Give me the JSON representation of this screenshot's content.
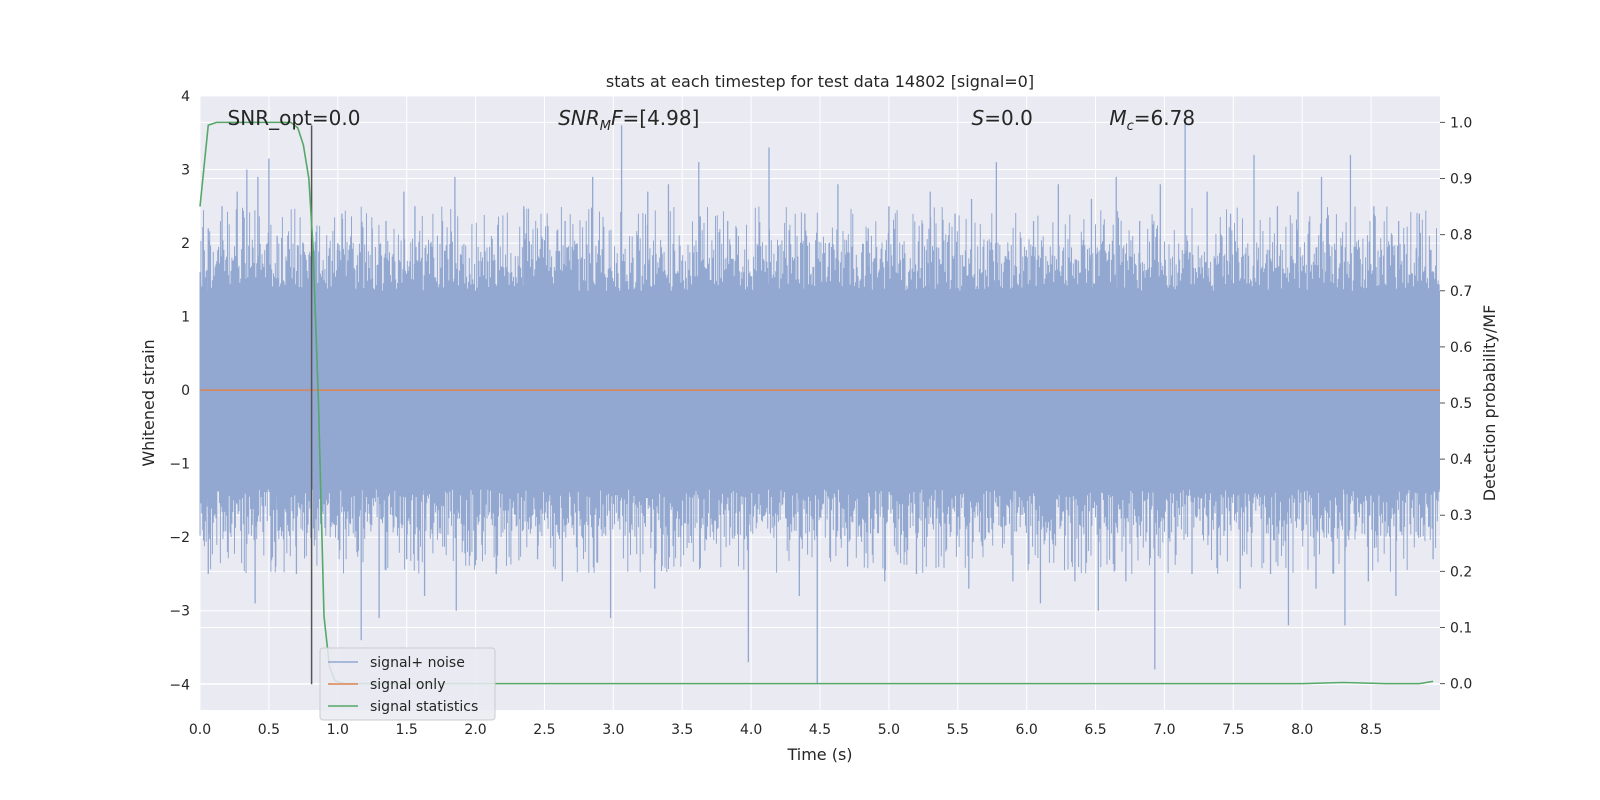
{
  "chart_data": {
    "type": "line",
    "title": "stats at each timestep for test data 14802 [signal=0]",
    "xlabel": "Time (s)",
    "ylabel": "Whitened strain",
    "y2label": "Detection probability/MF",
    "xlim": [
      0.0,
      9.0
    ],
    "ylim": [
      -4.35,
      4.0
    ],
    "y2lim": [
      -0.047,
      1.047
    ],
    "xticks": [
      "0.0",
      "0.5",
      "1.0",
      "1.5",
      "2.0",
      "2.5",
      "3.0",
      "3.5",
      "4.0",
      "4.5",
      "5.0",
      "5.5",
      "6.0",
      "6.5",
      "7.0",
      "7.5",
      "8.0",
      "8.5"
    ],
    "yticks": [
      "4",
      "3",
      "2",
      "1",
      "0",
      "−1",
      "−2",
      "−3",
      "−4"
    ],
    "y2ticks": [
      "1.0",
      "0.9",
      "0.8",
      "0.7",
      "0.6",
      "0.5",
      "0.4",
      "0.3",
      "0.2",
      "0.1",
      "0.0"
    ],
    "grid": true,
    "legend_position": "lower-left",
    "annotations": [
      {
        "id": "snr-opt",
        "text": "SNR_opt=0.0",
        "x": 0.2,
        "y": 3.7,
        "italic_prefix": ""
      },
      {
        "id": "snr-mf",
        "text": "SNR",
        "sub": "M",
        "tail": "F=[4.98]",
        "x": 2.6,
        "y": 3.7
      },
      {
        "id": "s-stat",
        "text": "S",
        "sub": "",
        "tail": "=0.0",
        "x": 5.6,
        "y": 3.7
      },
      {
        "id": "chirp-mass",
        "text": "M",
        "sub": "c",
        "tail": "=6.78",
        "x": 6.6,
        "y": 3.7
      }
    ],
    "vline": {
      "x": 0.81,
      "ymin": -4.0,
      "ymax": 3.6,
      "color": "#555555"
    },
    "series": [
      {
        "name": "signal+ noise",
        "axis": "left",
        "color": "#92a8d1",
        "style": "noise",
        "envelope": {
          "core": 1.35,
          "typical_peak": 2.5,
          "max_peak": 3.65,
          "min_peak": -4.0
        }
      },
      {
        "name": "signal only",
        "axis": "left",
        "color": "#dd8452",
        "x": [
          0.0,
          9.0
        ],
        "y": [
          0.0,
          0.0
        ]
      },
      {
        "name": "signal statistics",
        "axis": "right",
        "color": "#55a868",
        "x": [
          0.0,
          0.06,
          0.12,
          0.2,
          0.3,
          0.4,
          0.5,
          0.6,
          0.66,
          0.71,
          0.75,
          0.79,
          0.82,
          0.86,
          0.9,
          0.94,
          0.98,
          1.05,
          1.2,
          2.0,
          3.0,
          4.0,
          5.0,
          6.0,
          7.0,
          8.0,
          8.3,
          8.6,
          8.85,
          8.9,
          8.95
        ],
        "y": [
          0.85,
          0.995,
          1.0,
          1.0,
          1.0,
          1.0,
          1.0,
          1.0,
          1.0,
          0.99,
          0.96,
          0.9,
          0.78,
          0.5,
          0.12,
          0.03,
          0.005,
          0.0,
          0.0,
          0.0,
          0.0,
          0.0,
          0.0,
          0.0,
          0.0,
          0.0,
          0.002,
          0.0,
          0.0,
          0.002,
          0.004
        ]
      }
    ],
    "noise_spikes": {
      "up": [
        [
          0.06,
          2.2
        ],
        [
          0.16,
          2.5
        ],
        [
          0.27,
          2.7
        ],
        [
          0.34,
          3.0
        ],
        [
          0.42,
          2.9
        ],
        [
          0.5,
          3.15
        ],
        [
          0.56,
          2.1
        ],
        [
          1.0,
          2.0
        ],
        [
          1.03,
          2.4
        ],
        [
          1.25,
          2.2
        ],
        [
          1.35,
          2.3
        ],
        [
          1.48,
          2.7
        ],
        [
          1.56,
          2.5
        ],
        [
          1.76,
          2.3
        ],
        [
          1.85,
          2.9
        ],
        [
          2.35,
          2.5
        ],
        [
          2.65,
          2.3
        ],
        [
          2.85,
          2.9
        ],
        [
          3.06,
          3.6
        ],
        [
          3.25,
          2.7
        ],
        [
          3.4,
          2.8
        ],
        [
          3.62,
          3.1
        ],
        [
          3.83,
          2.3
        ],
        [
          4.13,
          3.3
        ],
        [
          4.39,
          2.4
        ],
        [
          4.63,
          2.8
        ],
        [
          4.85,
          2.2
        ],
        [
          5.0,
          2.5
        ],
        [
          5.3,
          2.7
        ],
        [
          5.48,
          2.4
        ],
        [
          5.6,
          2.6
        ],
        [
          5.78,
          3.1
        ],
        [
          6.05,
          2.3
        ],
        [
          6.23,
          2.8
        ],
        [
          6.47,
          2.6
        ],
        [
          6.65,
          2.9
        ],
        [
          6.82,
          2.3
        ],
        [
          6.97,
          2.8
        ],
        [
          7.15,
          3.65
        ],
        [
          7.31,
          2.7
        ],
        [
          7.48,
          2.4
        ],
        [
          7.65,
          3.2
        ],
        [
          7.82,
          2.5
        ],
        [
          7.97,
          2.7
        ],
        [
          8.14,
          2.9
        ],
        [
          8.35,
          3.2
        ],
        [
          8.52,
          2.5
        ],
        [
          8.7,
          2.3
        ],
        [
          8.85,
          2.4
        ]
      ],
      "down": [
        [
          0.06,
          -2.5
        ],
        [
          0.2,
          -2.2
        ],
        [
          0.4,
          -2.9
        ],
        [
          0.55,
          -2.4
        ],
        [
          0.7,
          -2.5
        ],
        [
          1.17,
          -3.4
        ],
        [
          1.3,
          -3.1
        ],
        [
          1.5,
          -2.3
        ],
        [
          1.63,
          -2.8
        ],
        [
          1.86,
          -3.0
        ],
        [
          2.15,
          -2.5
        ],
        [
          2.45,
          -2.3
        ],
        [
          2.63,
          -2.6
        ],
        [
          2.98,
          -3.1
        ],
        [
          3.3,
          -2.7
        ],
        [
          3.98,
          -3.7
        ],
        [
          4.35,
          -2.8
        ],
        [
          4.48,
          -4.0
        ],
        [
          4.7,
          -2.4
        ],
        [
          4.97,
          -2.6
        ],
        [
          5.2,
          -2.5
        ],
        [
          5.58,
          -2.7
        ],
        [
          5.9,
          -2.6
        ],
        [
          6.1,
          -2.9
        ],
        [
          6.35,
          -2.6
        ],
        [
          6.52,
          -3.0
        ],
        [
          6.72,
          -2.6
        ],
        [
          6.93,
          -3.8
        ],
        [
          7.2,
          -2.5
        ],
        [
          7.55,
          -2.7
        ],
        [
          7.77,
          -2.5
        ],
        [
          7.9,
          -3.2
        ],
        [
          8.1,
          -2.7
        ],
        [
          8.31,
          -3.2
        ],
        [
          8.48,
          -2.6
        ],
        [
          8.68,
          -2.8
        ],
        [
          8.95,
          -2.3
        ]
      ]
    }
  }
}
